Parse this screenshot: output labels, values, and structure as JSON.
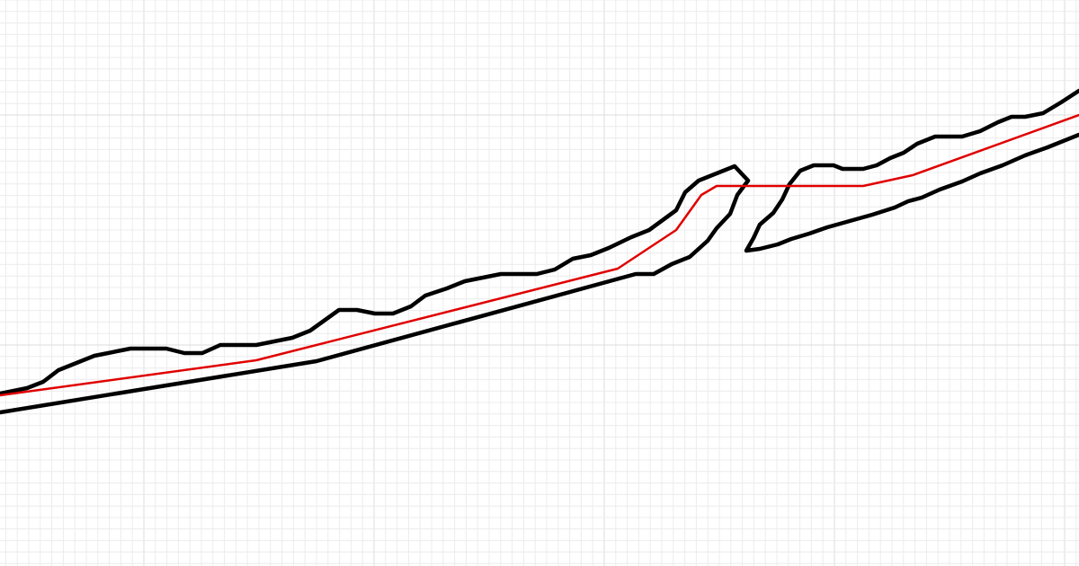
{
  "canvas": {
    "background": "#ffffff",
    "grid": true,
    "minor_grid_color": "#ececec",
    "major_grid_color": "#dcdcdc"
  },
  "strokes": [
    {
      "name": "black-outline-left",
      "color": "#000000"
    },
    {
      "name": "black-outline-right",
      "color": "#000000"
    },
    {
      "name": "red-centerline",
      "color": "#e00000"
    }
  ]
}
